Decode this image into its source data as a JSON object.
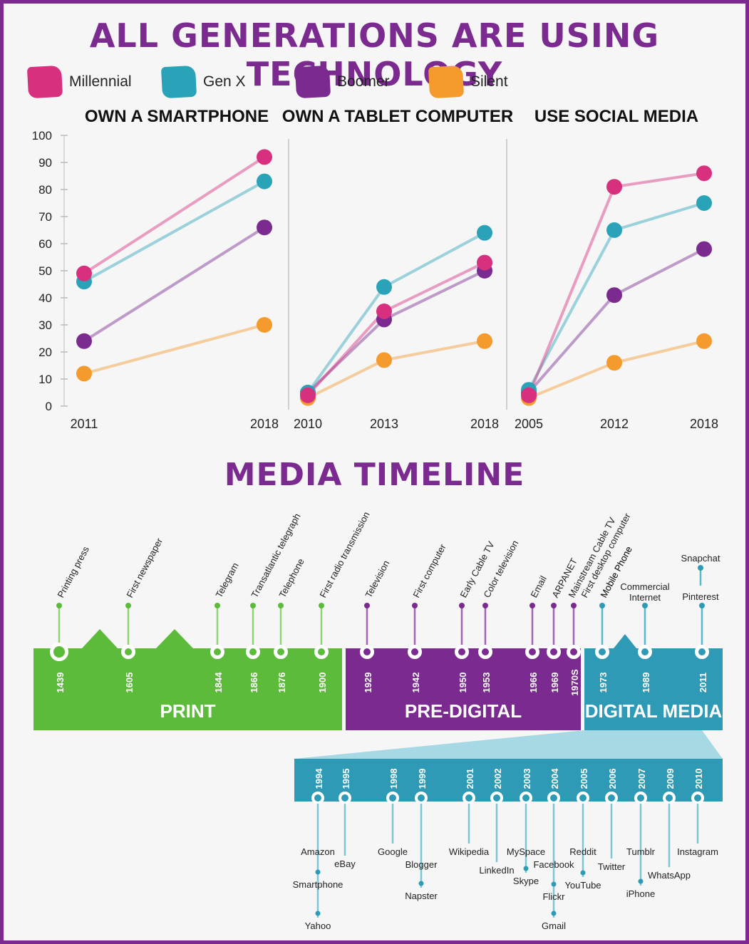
{
  "title": "ALL GENERATIONS ARE USING TECHNOLOGY",
  "timeline_title": "MEDIA TIMELINE",
  "colors": {
    "millennial": "#d6307e",
    "genx": "#2aa3b9",
    "boomer": "#7b2a90",
    "silent": "#f59a2c",
    "print": "#5cbb3a",
    "predigital": "#7b2a90",
    "digital": "#2e9ab5"
  },
  "legend": [
    {
      "label": "Millennial",
      "color": "#d6307e"
    },
    {
      "label": "Gen X",
      "color": "#2aa3b9"
    },
    {
      "label": "Boomer",
      "color": "#7b2a90"
    },
    {
      "label": "Silent",
      "color": "#f59a2c"
    }
  ],
  "chart_data": [
    {
      "type": "line",
      "title": "OWN A SMARTPHONE",
      "categories": [
        "2011",
        "2018"
      ],
      "ylim": [
        0,
        100
      ],
      "yticks": [
        "0",
        "10",
        "20",
        "30",
        "40",
        "50",
        "60",
        "70",
        "80",
        "90",
        "100"
      ],
      "series": [
        {
          "name": "Millennial",
          "values": [
            49,
            92
          ]
        },
        {
          "name": "Gen X",
          "values": [
            46,
            83
          ]
        },
        {
          "name": "Boomer",
          "values": [
            24,
            66
          ]
        },
        {
          "name": "Silent",
          "values": [
            12,
            30
          ]
        }
      ]
    },
    {
      "type": "line",
      "title": "OWN A TABLET COMPUTER",
      "categories": [
        "2010",
        "2013",
        "2018"
      ],
      "ylim": [
        0,
        100
      ],
      "series": [
        {
          "name": "Millennial",
          "values": [
            4,
            35,
            53
          ]
        },
        {
          "name": "Gen X",
          "values": [
            5,
            44,
            64
          ]
        },
        {
          "name": "Boomer",
          "values": [
            5,
            32,
            50
          ]
        },
        {
          "name": "Silent",
          "values": [
            3,
            17,
            24
          ]
        }
      ]
    },
    {
      "type": "line",
      "title": "USE SOCIAL MEDIA",
      "categories": [
        "2005",
        "2012",
        "2018"
      ],
      "ylim": [
        0,
        100
      ],
      "series": [
        {
          "name": "Millennial",
          "values": [
            4,
            81,
            86
          ]
        },
        {
          "name": "Gen X",
          "values": [
            6,
            65,
            75
          ]
        },
        {
          "name": "Boomer",
          "values": [
            5,
            41,
            58
          ]
        },
        {
          "name": "Silent",
          "values": [
            3,
            16,
            24
          ]
        }
      ]
    }
  ],
  "timeline": {
    "eras": [
      {
        "label": "PRINT",
        "color": "#5cbb3a"
      },
      {
        "label": "PRE-DIGITAL",
        "color": "#7b2a90"
      },
      {
        "label": "DIGITAL MEDIA",
        "color": "#2e9ab5"
      }
    ],
    "events": [
      {
        "year": "1439",
        "label": "Printing press",
        "era": 0
      },
      {
        "year": "1605",
        "label": "First newspaper",
        "era": 0
      },
      {
        "year": "1844",
        "label": "Telegram",
        "era": 0
      },
      {
        "year": "1866",
        "label": "Transatlantic telegraph",
        "era": 0
      },
      {
        "year": "1876",
        "label": "Telephone",
        "era": 0
      },
      {
        "year": "1900",
        "label": "First radio transmission",
        "era": 0
      },
      {
        "year": "1929",
        "label": "Television",
        "era": 1
      },
      {
        "year": "1942",
        "label": "First computer",
        "era": 1
      },
      {
        "year": "1950",
        "label": "Early Cable TV",
        "era": 1
      },
      {
        "year": "1953",
        "label": "Color television",
        "era": 1
      },
      {
        "year": "1966",
        "label": "Email",
        "era": 1
      },
      {
        "year": "1969",
        "label": "ARPANET",
        "era": 1
      },
      {
        "year": "1970S",
        "labels": [
          "Mainstream Cable TV",
          "First desktop computer"
        ],
        "era": 1
      },
      {
        "year": "1973",
        "label": "Mobile Phone",
        "era": 2
      },
      {
        "year": "1989",
        "labels": [
          "Commercial",
          "Internet"
        ],
        "era": 2
      },
      {
        "year": "2011",
        "labels": [
          "Pinterest",
          "Snapchat"
        ],
        "era": 2
      }
    ],
    "detail": [
      {
        "year": "1994",
        "labels": [
          "Amazon",
          "Smartphone",
          "Yahoo"
        ]
      },
      {
        "year": "1995",
        "labels": [
          "eBay"
        ]
      },
      {
        "year": "1998",
        "labels": [
          "Google"
        ]
      },
      {
        "year": "1999",
        "labels": [
          "Blogger",
          "Napster"
        ]
      },
      {
        "year": "2001",
        "labels": [
          "Wikipedia"
        ]
      },
      {
        "year": "2002",
        "labels": [
          "LinkedIn"
        ]
      },
      {
        "year": "2003",
        "labels": [
          "MySpace",
          "Skype"
        ]
      },
      {
        "year": "2004",
        "labels": [
          "Facebook",
          "Flickr",
          "Gmail"
        ]
      },
      {
        "year": "2005",
        "labels": [
          "Reddit",
          "YouTube"
        ]
      },
      {
        "year": "2006",
        "labels": [
          "Twitter"
        ]
      },
      {
        "year": "2007",
        "labels": [
          "Tumblr",
          "iPhone"
        ]
      },
      {
        "year": "2009",
        "labels": [
          "WhatsApp"
        ]
      },
      {
        "year": "2010",
        "labels": [
          "Instagram"
        ]
      }
    ]
  }
}
